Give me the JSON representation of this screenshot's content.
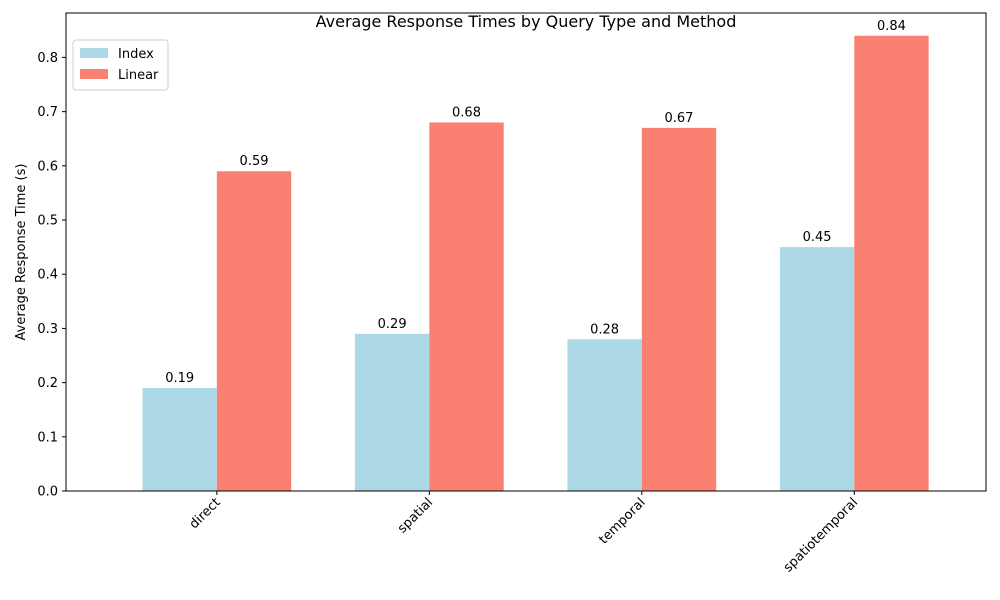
{
  "chart_data": {
    "type": "bar",
    "title": "Average Response Times by Query Type and Method",
    "xlabel": "",
    "ylabel": "Average Response Time (s)",
    "categories": [
      "direct",
      "spatial",
      "temporal",
      "spatiotemporal"
    ],
    "series": [
      {
        "name": "Index",
        "values": [
          0.19,
          0.29,
          0.28,
          0.45
        ],
        "labels": [
          "0.19",
          "0.29",
          "0.28",
          "0.45"
        ],
        "color": "#add8e6"
      },
      {
        "name": "Linear",
        "values": [
          0.59,
          0.68,
          0.67,
          0.84
        ],
        "labels": [
          "0.59",
          "0.68",
          "0.67",
          "0.84"
        ],
        "color": "#fa8072"
      }
    ],
    "ylim": [
      0,
      0.882
    ],
    "yticks": [
      0.0,
      0.1,
      0.2,
      0.3,
      0.4,
      0.5,
      0.6,
      0.7,
      0.8
    ],
    "ytick_labels": [
      "0.0",
      "0.1",
      "0.2",
      "0.3",
      "0.4",
      "0.5",
      "0.6",
      "0.7",
      "0.8"
    ],
    "x_tick_rotation_deg": 45,
    "grid": false,
    "legend_position": "top-left"
  }
}
